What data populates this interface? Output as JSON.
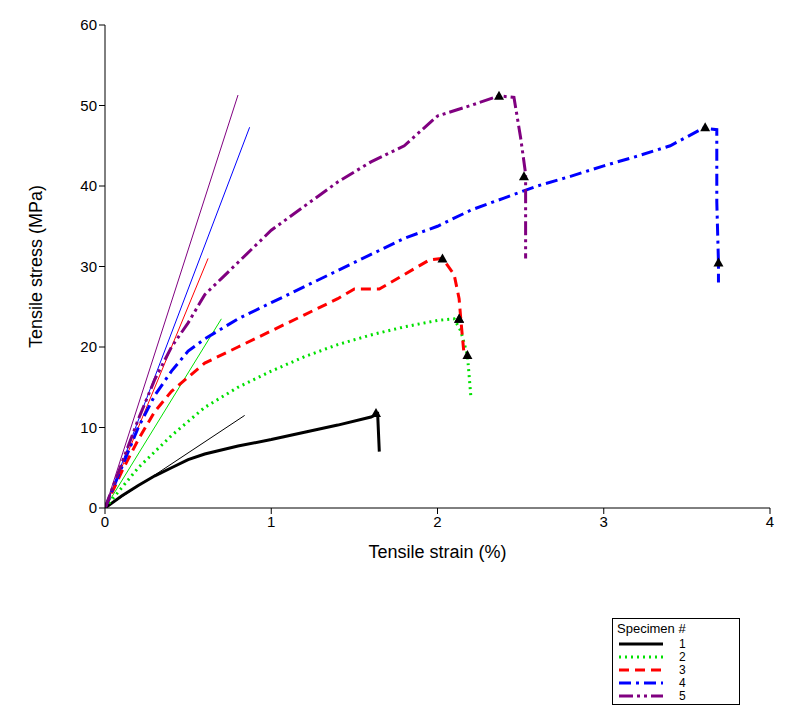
{
  "chart_data": {
    "type": "line",
    "x_label": "Tensile strain (%)",
    "y_label": "Tensile stress (MPa)",
    "xlim": [
      0,
      4
    ],
    "xticks": [
      0,
      1,
      2,
      3,
      4
    ],
    "ylim": [
      0,
      60
    ],
    "yticks": [
      0,
      10,
      20,
      30,
      40,
      50,
      60
    ],
    "grid": false,
    "legend": "bottom right",
    "legend_title": "Specimen #",
    "series": [
      {
        "name": "1",
        "color": "#000000",
        "line_style": "solid",
        "marker": "triangle",
        "x": [
          0,
          0.1,
          0.2,
          0.3,
          0.4,
          0.5,
          0.6,
          0.8,
          1.0,
          1.2,
          1.4,
          1.6,
          1.64,
          1.65
        ],
        "values": [
          0,
          1.5,
          2.8,
          4,
          5,
          6,
          6.7,
          7.7,
          8.5,
          9.4,
          10.3,
          11.3,
          11.7,
          7
        ],
        "triangles_x": [
          1.63
        ],
        "triangles_values": [
          11.8
        ],
        "tangent_x": [
          0,
          0.84
        ],
        "tangent_values": [
          0,
          11.5
        ]
      },
      {
        "name": "2",
        "color": "#00e000",
        "line_style": "dotted",
        "marker": "triangle",
        "x": [
          0,
          0.1,
          0.2,
          0.4,
          0.6,
          0.8,
          1.0,
          1.2,
          1.4,
          1.6,
          1.8,
          2.0,
          2.1,
          2.14,
          2.18,
          2.2
        ],
        "values": [
          0,
          2.5,
          5,
          9,
          12.5,
          15,
          17,
          18.8,
          20.3,
          21.5,
          22.5,
          23.3,
          23.5,
          22,
          19,
          14
        ],
        "triangles_x": [
          2.13,
          2.18
        ],
        "triangles_values": [
          23.5,
          19
        ],
        "tangent_x": [
          0,
          0.7
        ],
        "tangent_values": [
          0,
          23.5
        ]
      },
      {
        "name": "3",
        "color": "#ff0000",
        "line_style": "dashed",
        "marker": "triangle",
        "x": [
          0,
          0.1,
          0.2,
          0.3,
          0.4,
          0.6,
          0.8,
          1.0,
          1.2,
          1.4,
          1.5,
          1.65,
          1.8,
          1.95,
          2.03,
          2.1,
          2.13,
          2.14,
          2.16
        ],
        "values": [
          0,
          4.5,
          8.5,
          12,
          14.5,
          18,
          20,
          22,
          24,
          26,
          27.2,
          27.2,
          29,
          30.8,
          31,
          29,
          26,
          23.5,
          19
        ],
        "triangles_x": [
          2.03,
          2.13
        ],
        "triangles_values": [
          31,
          23.5
        ],
        "tangent_x": [
          0,
          0.62
        ],
        "tangent_values": [
          0,
          31
        ]
      },
      {
        "name": "4",
        "color": "#0000ff",
        "line_style": "dashdot",
        "marker": "triangle",
        "x": [
          0,
          0.1,
          0.2,
          0.3,
          0.4,
          0.5,
          0.6,
          0.8,
          1.0,
          1.2,
          1.4,
          1.6,
          1.8,
          2.0,
          2.2,
          2.4,
          2.6,
          2.8,
          3.0,
          3.2,
          3.4,
          3.6,
          3.68,
          3.68,
          3.69,
          3.69
        ],
        "values": [
          0,
          5,
          10,
          14,
          17,
          19.5,
          21,
          23.5,
          25.5,
          27.5,
          29.5,
          31.5,
          33.5,
          35,
          37,
          38.5,
          40,
          41.2,
          42.5,
          43.7,
          45,
          47.2,
          47,
          38,
          30.5,
          28
        ],
        "triangles_x": [
          3.61,
          3.69
        ],
        "triangles_values": [
          47.3,
          30.5
        ],
        "tangent_x": [
          0,
          0.87
        ],
        "tangent_values": [
          0,
          47.3
        ]
      },
      {
        "name": "5",
        "color": "#800080",
        "line_style": "dashdotdot",
        "marker": "triangle",
        "x": [
          0,
          0.1,
          0.2,
          0.3,
          0.4,
          0.5,
          0.6,
          0.7,
          0.8,
          0.9,
          1.0,
          1.2,
          1.4,
          1.6,
          1.8,
          2.0,
          2.2,
          2.37,
          2.46,
          2.5,
          2.53,
          2.53,
          2.53
        ],
        "values": [
          0,
          5.5,
          11,
          16,
          20,
          23,
          26.5,
          28.5,
          30.5,
          32.5,
          34.5,
          37.5,
          40.5,
          43,
          45,
          48.7,
          50,
          51.2,
          51,
          46,
          41.5,
          35,
          31
        ],
        "triangles_x": [
          2.37,
          2.52
        ],
        "triangles_values": [
          51.2,
          41.2
        ],
        "tangent_x": [
          0,
          0.8
        ],
        "tangent_values": [
          0,
          51.3
        ]
      }
    ]
  }
}
